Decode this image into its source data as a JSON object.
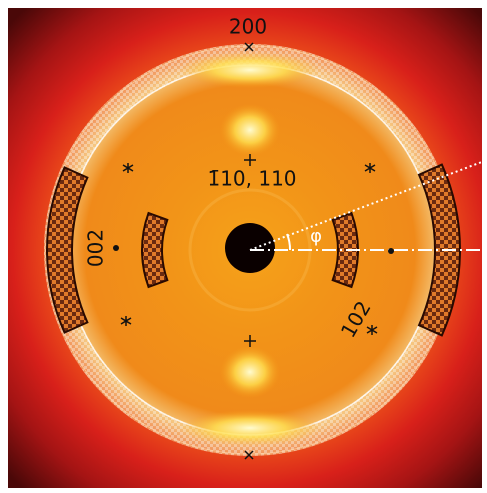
{
  "labels": {
    "top": "200",
    "left": "002",
    "center": "1̄10, 110",
    "lower_right": "102",
    "angle": "φ"
  }
}
